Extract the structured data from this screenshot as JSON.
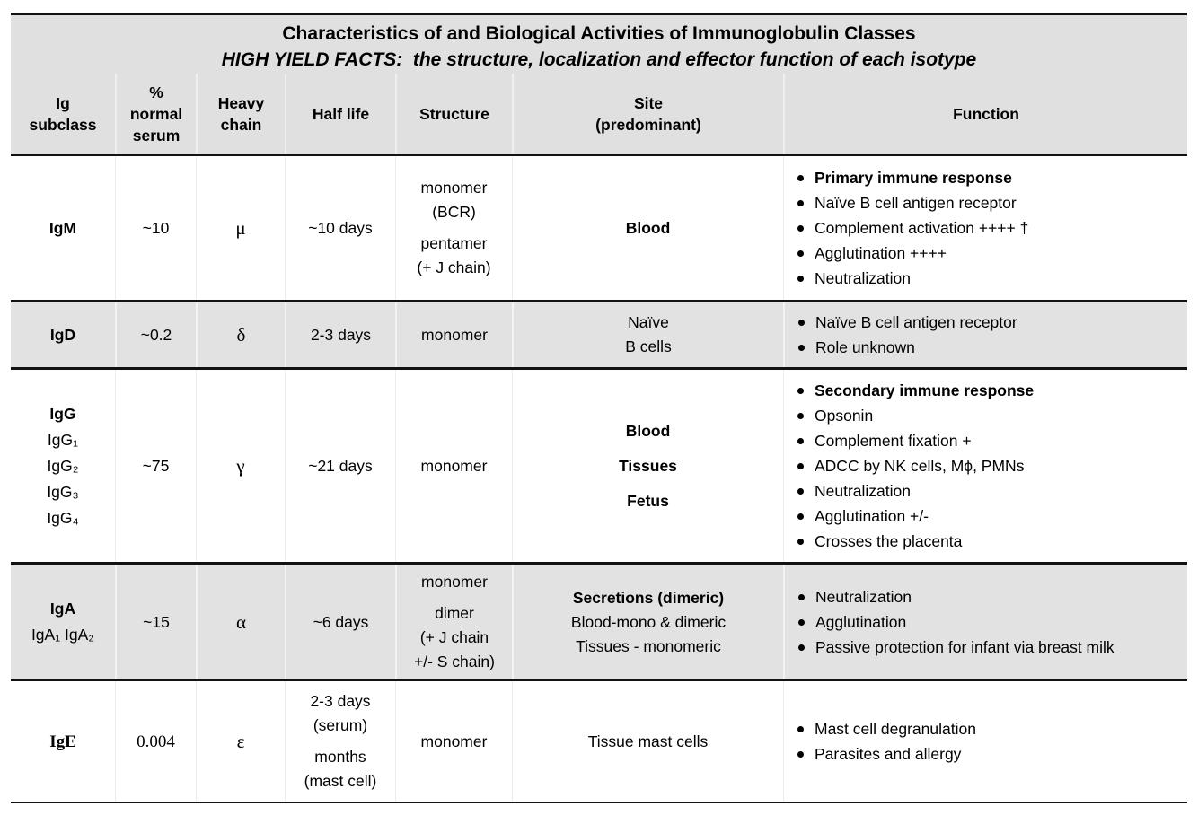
{
  "title": {
    "line1": "Characteristics of and Biological Activities of Immunoglobulin Classes",
    "line2": "HIGH YIELD FACTS:  the structure, localization and effector function of each isotype"
  },
  "colors": {
    "header_bg": "#e0e0e0",
    "shaded_row_bg": "#e2e2e2",
    "border": "#121212",
    "text": "#000000"
  },
  "columns": [
    {
      "id": "ig-subclass",
      "lines": [
        "Ig",
        "subclass"
      ]
    },
    {
      "id": "percent-normal-serum",
      "lines": [
        "%",
        "normal",
        "serum"
      ]
    },
    {
      "id": "heavy-chain",
      "lines": [
        "Heavy",
        "chain"
      ]
    },
    {
      "id": "half-life",
      "lines": [
        "Half life"
      ]
    },
    {
      "id": "structure",
      "lines": [
        "Structure"
      ]
    },
    {
      "id": "site",
      "lines": [
        "Site",
        "(predominant)"
      ]
    },
    {
      "id": "function",
      "lines": [
        "Function"
      ]
    }
  ],
  "rows": [
    {
      "id": "igm",
      "shaded": false,
      "serif": false,
      "subclass": [
        [
          {
            "t": "IgM",
            "b": true
          }
        ]
      ],
      "serum": "~10",
      "heavy_chain": "μ",
      "half_life": [
        [
          "~10 days"
        ]
      ],
      "structure": [
        [
          "monomer",
          "(BCR)"
        ],
        [
          "pentamer",
          "(+ J chain)"
        ]
      ],
      "site": [
        [
          {
            "t": "Blood",
            "b": true
          }
        ]
      ],
      "functions": [
        {
          "t": "Primary immune response",
          "b": true
        },
        {
          "t": "Naïve B cell antigen receptor",
          "b": false
        },
        {
          "t": "Complement activation ++++ †",
          "b": false
        },
        {
          "t": "Agglutination ++++",
          "b": false
        },
        {
          "t": "Neutralization",
          "b": false
        }
      ]
    },
    {
      "id": "igd",
      "shaded": true,
      "serif": false,
      "subclass": [
        [
          {
            "t": "IgD",
            "b": true
          }
        ]
      ],
      "serum": "~0.2",
      "heavy_chain": "δ",
      "half_life": [
        [
          "2-3 days"
        ]
      ],
      "structure": [
        [
          "monomer"
        ]
      ],
      "site": [
        [
          {
            "t": "Naïve",
            "b": false
          },
          {
            "t": "B cells",
            "b": false
          }
        ]
      ],
      "functions": [
        {
          "t": "Naïve B cell antigen receptor",
          "b": false
        },
        {
          "t": "Role unknown",
          "b": false
        }
      ]
    },
    {
      "id": "igg",
      "shaded": false,
      "serif": false,
      "subclass": [
        [
          {
            "t": "IgG",
            "b": true
          },
          {
            "t": "IgG₁",
            "b": false
          },
          {
            "t": "IgG₂",
            "b": false
          },
          {
            "t": "IgG₃",
            "b": false
          },
          {
            "t": "IgG₄",
            "b": false
          }
        ]
      ],
      "serum": "~75",
      "heavy_chain": "γ",
      "half_life": [
        [
          "~21 days"
        ]
      ],
      "structure": [
        [
          "monomer"
        ]
      ],
      "site": [
        [
          {
            "t": "Blood",
            "b": true
          }
        ],
        [
          {
            "t": "Tissues",
            "b": true
          }
        ],
        [
          {
            "t": "Fetus",
            "b": true
          }
        ]
      ],
      "functions": [
        {
          "t": "Secondary immune response",
          "b": true
        },
        {
          "t": "Opsonin",
          "b": false
        },
        {
          "t": "Complement fixation +",
          "b": false
        },
        {
          "t": "ADCC by NK cells, Mϕ, PMNs",
          "b": false
        },
        {
          "t": "Neutralization",
          "b": false
        },
        {
          "t": "Agglutination +/-",
          "b": false
        },
        {
          "t": "Crosses the placenta",
          "b": false
        }
      ]
    },
    {
      "id": "iga",
      "shaded": true,
      "serif": false,
      "subclass": [
        [
          {
            "t": "IgA",
            "b": true
          },
          {
            "t": "IgA₁ IgA₂",
            "b": false
          }
        ]
      ],
      "serum": "~15",
      "heavy_chain": "α",
      "half_life": [
        [
          "~6 days"
        ]
      ],
      "structure": [
        [
          "monomer"
        ],
        [
          "dimer",
          "(+ J chain",
          "+/- S chain)"
        ]
      ],
      "site": [
        [
          {
            "t": "Secretions (dimeric)",
            "b": true
          },
          {
            "t": "Blood-mono & dimeric",
            "b": false
          },
          {
            "t": "Tissues  - monomeric",
            "b": false
          }
        ]
      ],
      "functions": [
        {
          "t": "Neutralization",
          "b": false
        },
        {
          "t": "Agglutination",
          "b": false
        },
        {
          "t": "Passive protection for infant via breast milk",
          "b": false
        }
      ]
    },
    {
      "id": "ige",
      "shaded": false,
      "serif": true,
      "subclass": [
        [
          {
            "t": "IgE",
            "b": true
          }
        ]
      ],
      "serum": "0.004",
      "heavy_chain": "ε",
      "half_life": [
        [
          "2-3 days",
          "(serum)"
        ],
        [
          "months",
          "(mast cell)"
        ]
      ],
      "structure": [
        [
          "monomer"
        ]
      ],
      "site": [
        [
          {
            "t": "Tissue mast cells",
            "b": false
          }
        ]
      ],
      "functions": [
        {
          "t": "Mast cell degranulation",
          "b": false
        },
        {
          "t": "Parasites and allergy",
          "b": false
        }
      ]
    }
  ]
}
